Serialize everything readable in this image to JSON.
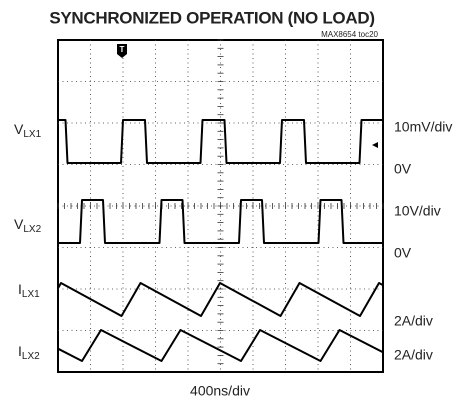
{
  "title": "SYNCHRONIZED OPERATION (NO LOAD)",
  "figure_id": "MAX8654 toc20",
  "channels": [
    {
      "name": {
        "main": "V",
        "sub": "LX1"
      },
      "scale": "10mV/div",
      "ground": "0V"
    },
    {
      "name": {
        "main": "V",
        "sub": "LX2"
      },
      "scale": "10V/div",
      "ground": "0V"
    },
    {
      "name": {
        "main": "I",
        "sub": "LX1"
      },
      "scale": "2A/div"
    },
    {
      "name": {
        "main": "I",
        "sub": "LX2"
      },
      "scale": "2A/div"
    }
  ],
  "time_scale": "400ns/div",
  "trigger_marker": "T"
}
